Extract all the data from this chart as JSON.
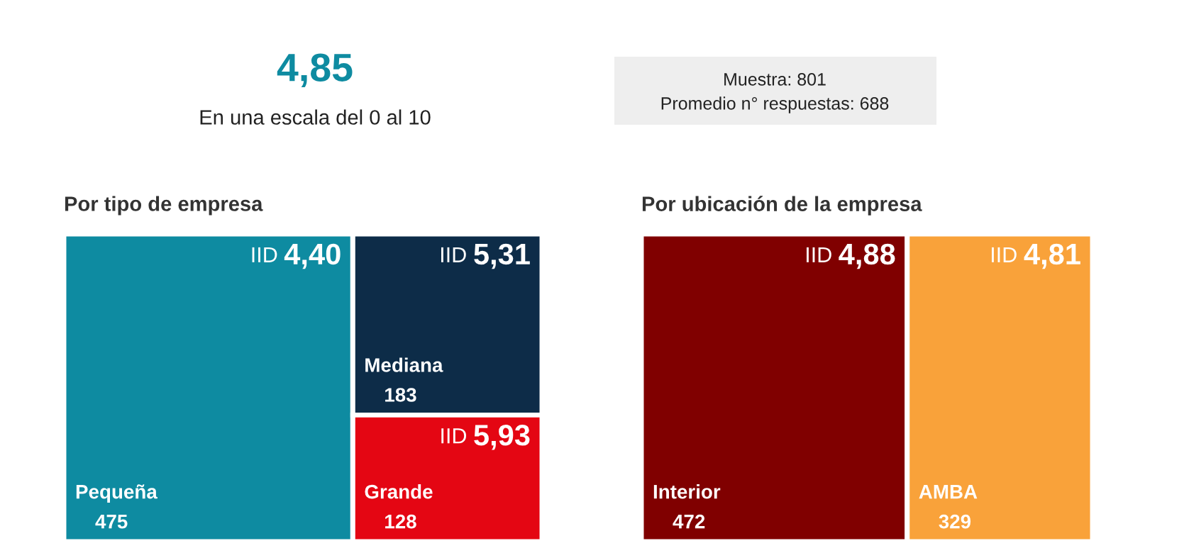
{
  "chart_data": [
    {
      "type": "other",
      "title": "4,85",
      "subtitle": "En una escala del 0 al 10",
      "annotations": [
        "Muestra: 801",
        "Promedio n° respuestas: 688"
      ],
      "color": "#0e8ba1"
    },
    {
      "type": "other",
      "title": "Por tipo de empresa",
      "categories": [
        "Pequeña",
        "Mediana",
        "Grande"
      ],
      "values": [
        475,
        183,
        128
      ],
      "data_labels": true,
      "annotations": [
        "IID 4,40",
        "IID 5,31",
        "IID 5,93"
      ],
      "colors": [
        "#0e8ba1",
        "#0d2c48",
        "#e40613"
      ]
    },
    {
      "type": "other",
      "title": "Por ubicación de la empresa",
      "categories": [
        "Interior",
        "AMBA"
      ],
      "values": [
        472,
        329
      ],
      "data_labels": true,
      "annotations": [
        "IID 4,88",
        "IID 4,81"
      ],
      "colors": [
        "#800000",
        "#f9a23a"
      ]
    }
  ]
}
